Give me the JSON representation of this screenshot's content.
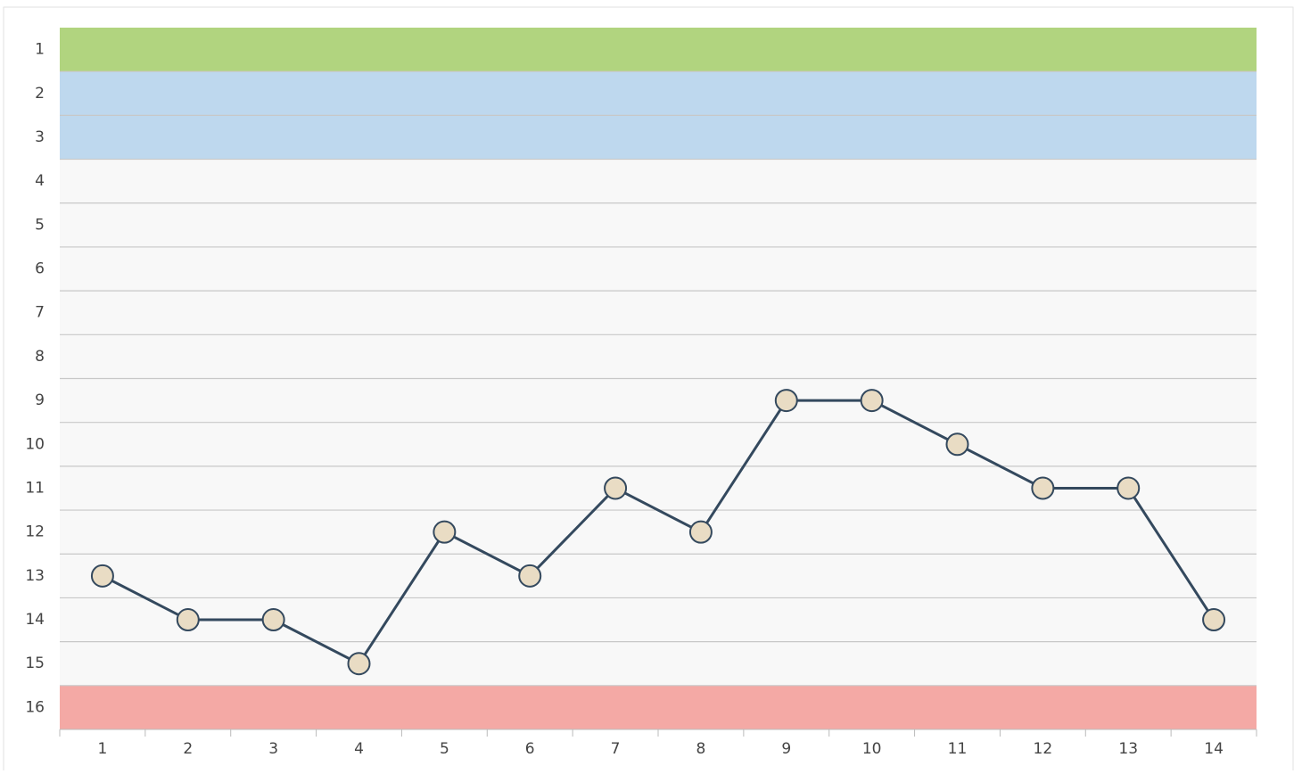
{
  "chart_data": {
    "type": "line",
    "x": [
      1,
      2,
      3,
      4,
      5,
      6,
      7,
      8,
      9,
      10,
      11,
      12,
      13,
      14
    ],
    "xlim": [
      0.5,
      14.5
    ],
    "xticks": [
      1,
      2,
      3,
      4,
      5,
      6,
      7,
      8,
      9,
      10,
      11,
      12,
      13,
      14
    ],
    "series": [
      {
        "color": "#34495e",
        "values": [
          13,
          14,
          14,
          15,
          12,
          13,
          11,
          12,
          9,
          9,
          10,
          11,
          11,
          14
        ]
      }
    ],
    "ylim": [
      16.5,
      0.5
    ],
    "yticks": [
      1,
      2,
      3,
      4,
      5,
      6,
      7,
      8,
      9,
      10,
      11,
      12,
      13,
      14,
      15,
      16
    ],
    "bands": [
      {
        "from": 1,
        "to": 1,
        "color": "#b1d47f"
      },
      {
        "from": 2,
        "to": 3,
        "color": "#bed8ee"
      },
      {
        "from": 16,
        "to": 16,
        "color": "#f4a9a5"
      }
    ],
    "grid": true
  }
}
